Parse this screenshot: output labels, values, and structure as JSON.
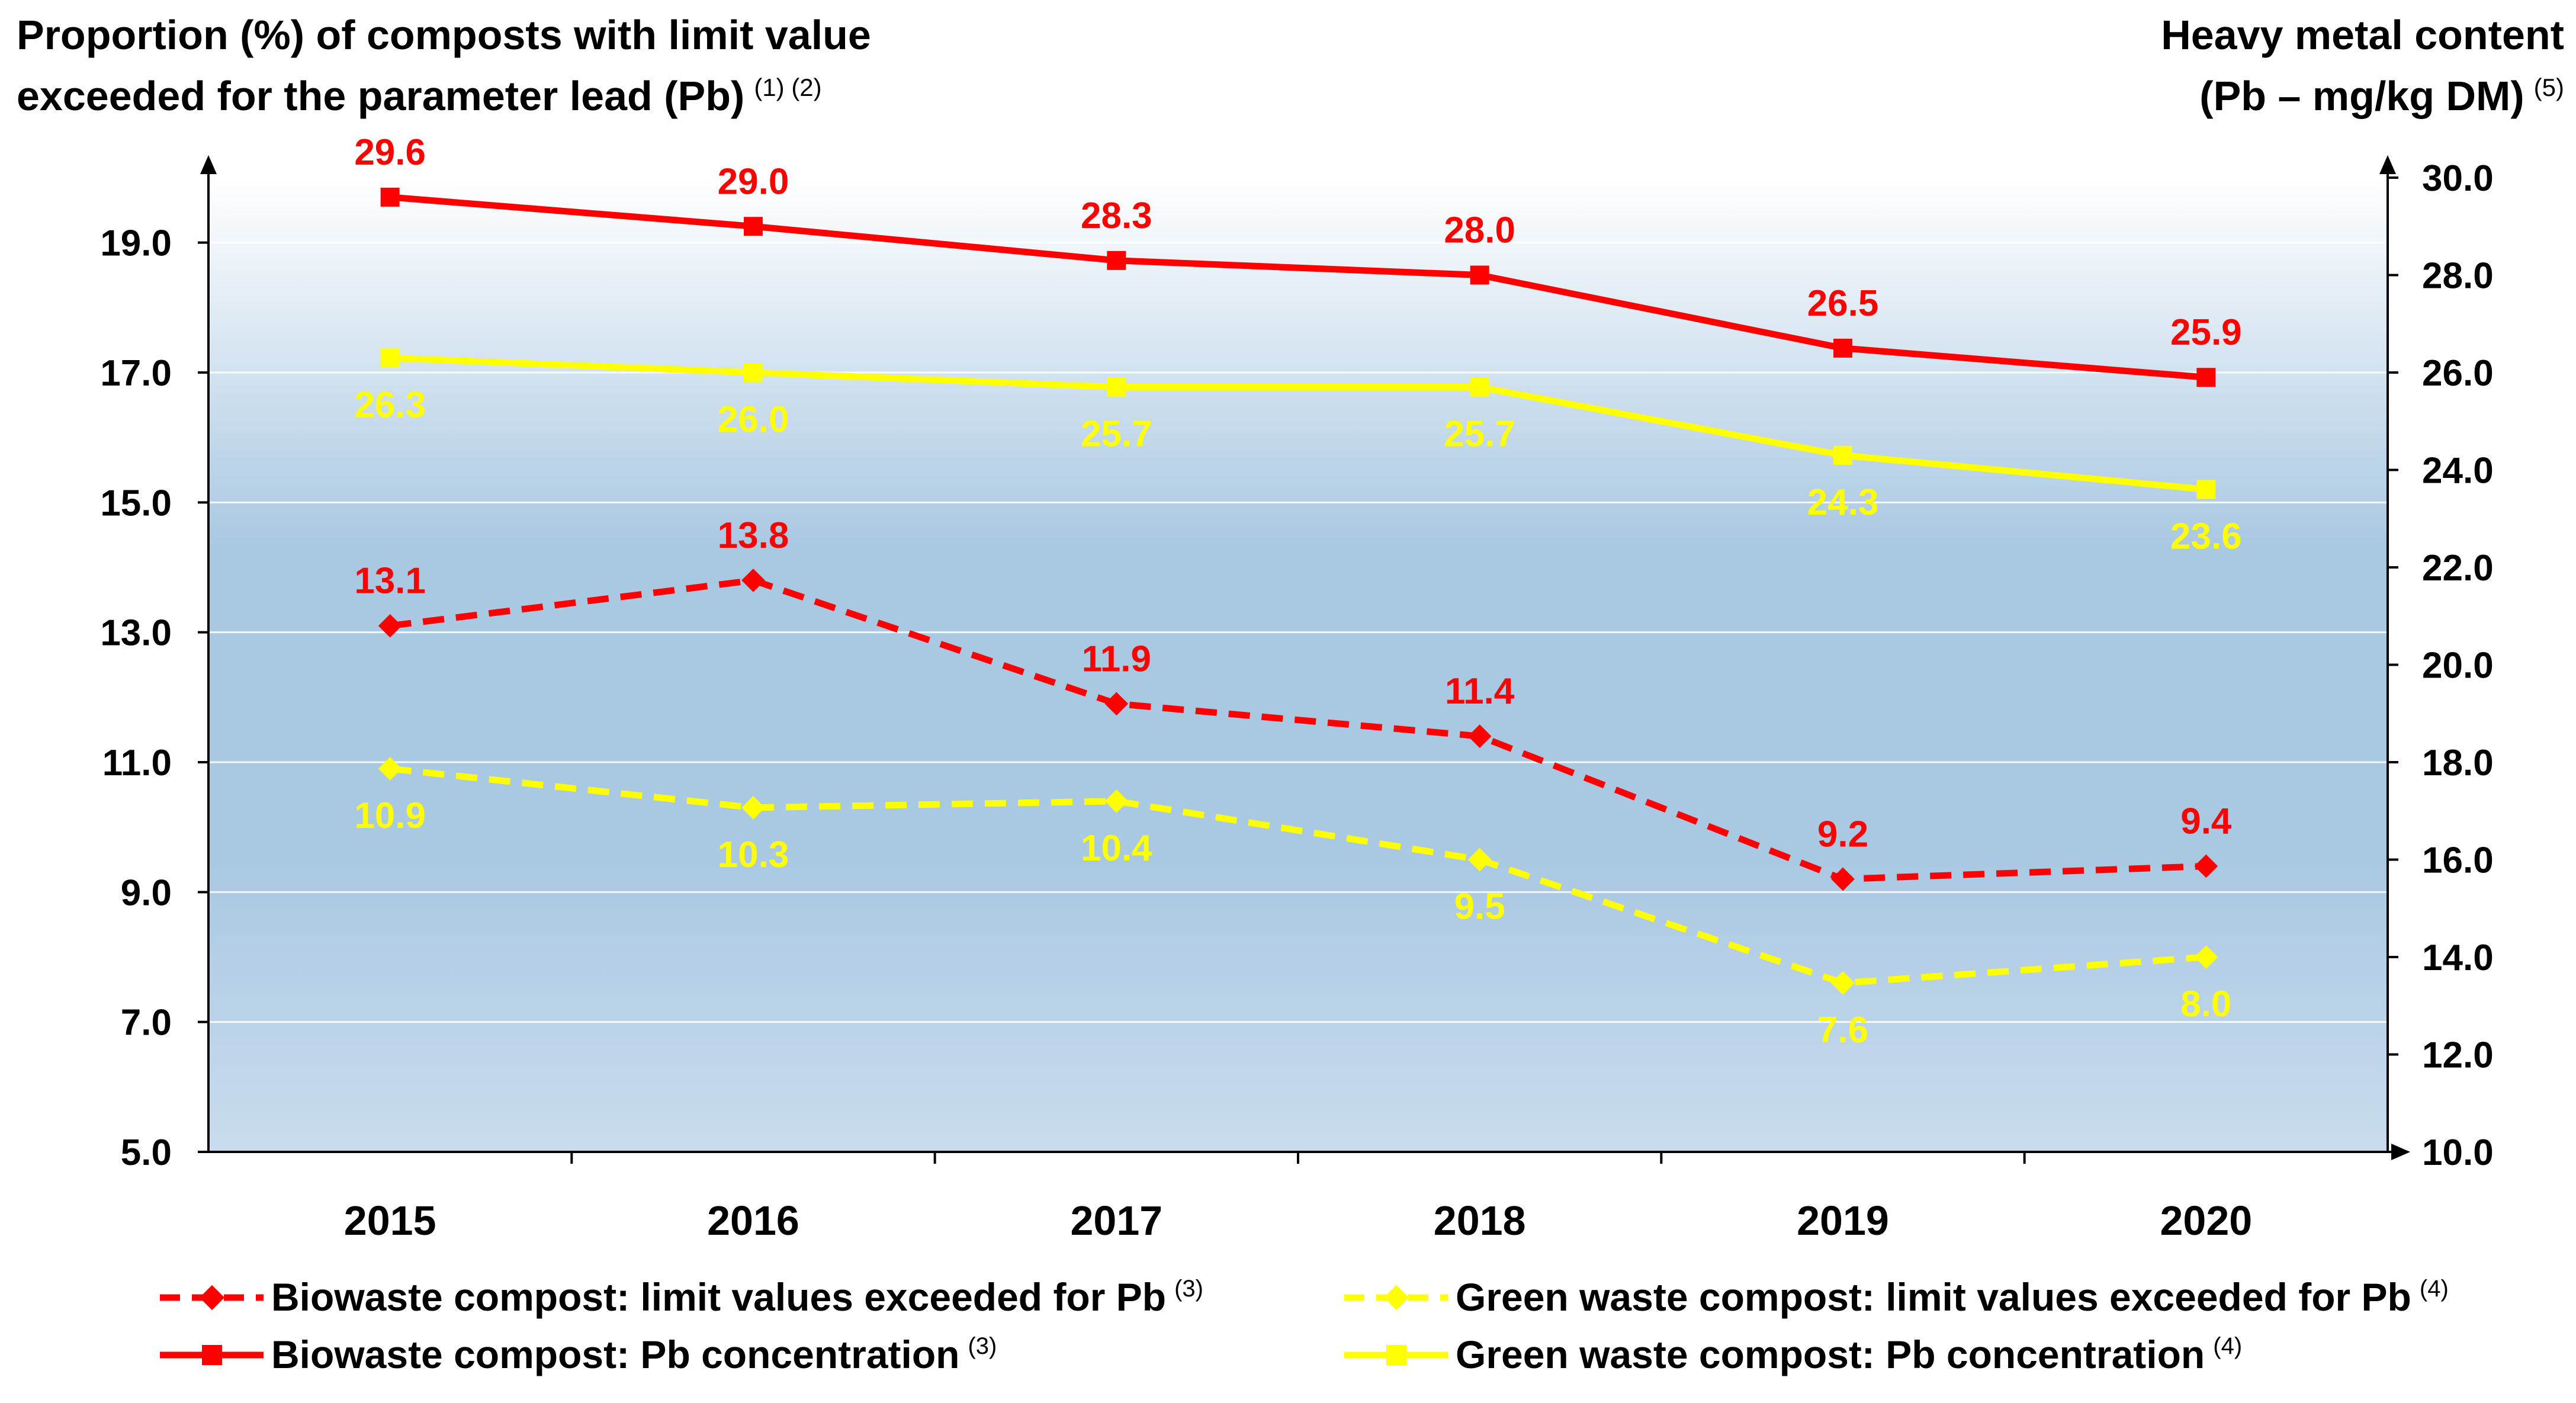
{
  "chart_data": {
    "type": "line",
    "title_left": {
      "line1": "Proportion (%) of composts with limit value",
      "line2": "exceeded for the parameter lead (Pb)",
      "superscript": "(1) (2)"
    },
    "title_right": {
      "line1": "Heavy metal content",
      "line2": "(Pb – mg/kg DM)",
      "superscript": "(5)"
    },
    "categories": [
      "2015",
      "2016",
      "2017",
      "2018",
      "2019",
      "2020"
    ],
    "y_left": {
      "min": 5.0,
      "max": 20.0,
      "ticks": [
        "5.0",
        "7.0",
        "9.0",
        "11.0",
        "13.0",
        "15.0",
        "17.0",
        "19.0"
      ]
    },
    "y_right": {
      "min": 10.0,
      "max": 30.0,
      "ticks": [
        "10.0",
        "12.0",
        "14.0",
        "16.0",
        "18.0",
        "20.0",
        "22.0",
        "24.0",
        "26.0",
        "28.0",
        "30.0"
      ]
    },
    "series": [
      {
        "name": "Biowaste compost: Pb concentration",
        "superscript": "(3)",
        "axis": "right",
        "color": "#ff0000",
        "style": "solid",
        "marker": "square",
        "label_position": "above",
        "values": [
          29.6,
          29.0,
          28.3,
          28.0,
          26.5,
          25.9
        ],
        "labels": [
          "29.6",
          "29.0",
          "28.3",
          "28.0",
          "26.5",
          "25.9"
        ]
      },
      {
        "name": "Green waste compost: Pb concentration",
        "superscript": "(4)",
        "axis": "right",
        "color": "#ffff00",
        "style": "solid",
        "marker": "square",
        "label_position": "below",
        "values": [
          26.3,
          26.0,
          25.7,
          25.7,
          24.3,
          23.6
        ],
        "labels": [
          "26.3",
          "26.0",
          "25.7",
          "25.7",
          "24.3",
          "23.6"
        ]
      },
      {
        "name": "Biowaste compost: limit values exceeded for Pb",
        "superscript": "(3)",
        "axis": "left",
        "color": "#ff0000",
        "style": "dashed",
        "marker": "diamond",
        "label_position": "above",
        "values": [
          13.1,
          13.8,
          11.9,
          11.4,
          9.2,
          9.4
        ],
        "labels": [
          "13.1",
          "13.8",
          "11.9",
          "11.4",
          "9.2",
          "9.4"
        ]
      },
      {
        "name": "Green waste compost: limit values exceeded for Pb",
        "superscript": "(4)",
        "axis": "left",
        "color": "#ffff00",
        "style": "dashed",
        "marker": "diamond",
        "label_position": "below",
        "values": [
          10.9,
          10.3,
          10.4,
          9.5,
          7.6,
          8.0
        ],
        "labels": [
          "10.9",
          "10.3",
          "10.4",
          "9.5",
          "7.6",
          "8.0"
        ]
      }
    ],
    "legend_order": [
      2,
      3,
      0,
      1
    ],
    "gridlines": true,
    "legend_position": "bottom",
    "background": {
      "top": "#ffffff",
      "middle": "#a9c8e2",
      "bottom": "#c9dcee"
    }
  }
}
